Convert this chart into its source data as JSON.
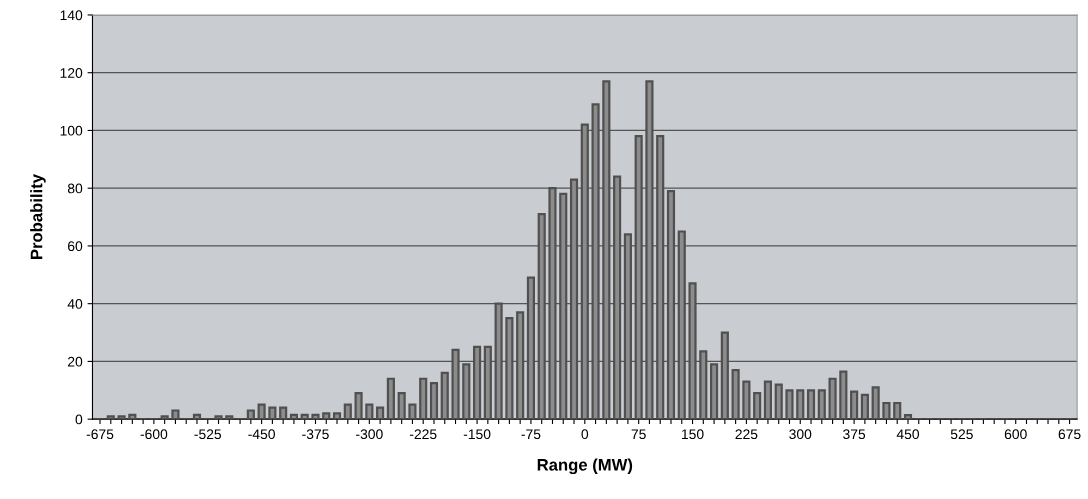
{
  "chart_data": {
    "type": "bar",
    "xlabel": "Range (MW)",
    "ylabel": "Probability",
    "categories": [
      "-675",
      null,
      null,
      null,
      null,
      "-600",
      null,
      null,
      null,
      null,
      "-525",
      null,
      null,
      null,
      null,
      "-450",
      null,
      null,
      null,
      null,
      "-375",
      null,
      null,
      null,
      null,
      "-300",
      null,
      null,
      null,
      null,
      "-225",
      null,
      null,
      null,
      null,
      "-150",
      null,
      null,
      null,
      null,
      "-75",
      null,
      null,
      null,
      null,
      "0",
      null,
      null,
      null,
      null,
      "75",
      null,
      null,
      null,
      null,
      "150",
      null,
      null,
      null,
      null,
      "225",
      null,
      null,
      null,
      null,
      "300",
      null,
      null,
      null,
      null,
      "375",
      null,
      null,
      null,
      null,
      "450",
      null,
      null,
      null,
      null,
      "525",
      null,
      null,
      null,
      null,
      "600",
      null,
      null,
      null,
      null,
      "675"
    ],
    "values": [
      0,
      1,
      1,
      1.5,
      0,
      0,
      1,
      3,
      0,
      1.5,
      0,
      1,
      1,
      0,
      3,
      5,
      4,
      4,
      1.5,
      1.5,
      1.5,
      2,
      2,
      5,
      9,
      5,
      4,
      14,
      9,
      5,
      14,
      12.5,
      16,
      24,
      19,
      25,
      25,
      40,
      35,
      37,
      49,
      71,
      80,
      78,
      83,
      102,
      109,
      117,
      84,
      64,
      98,
      117,
      98,
      79,
      65,
      47,
      23.5,
      19,
      30,
      17,
      13,
      9,
      13,
      12,
      10,
      10,
      10,
      10,
      14,
      16.5,
      9.5,
      8.4,
      11,
      5.6,
      5.6,
      1.4,
      0,
      0,
      0,
      0,
      0,
      0,
      0,
      0,
      0,
      0,
      0,
      0,
      0,
      0,
      0
    ],
    "color": "#505050",
    "ylim": [
      0,
      140
    ],
    "yticks": [
      0,
      20,
      40,
      60,
      80,
      100,
      120,
      140
    ],
    "grid": "y"
  }
}
